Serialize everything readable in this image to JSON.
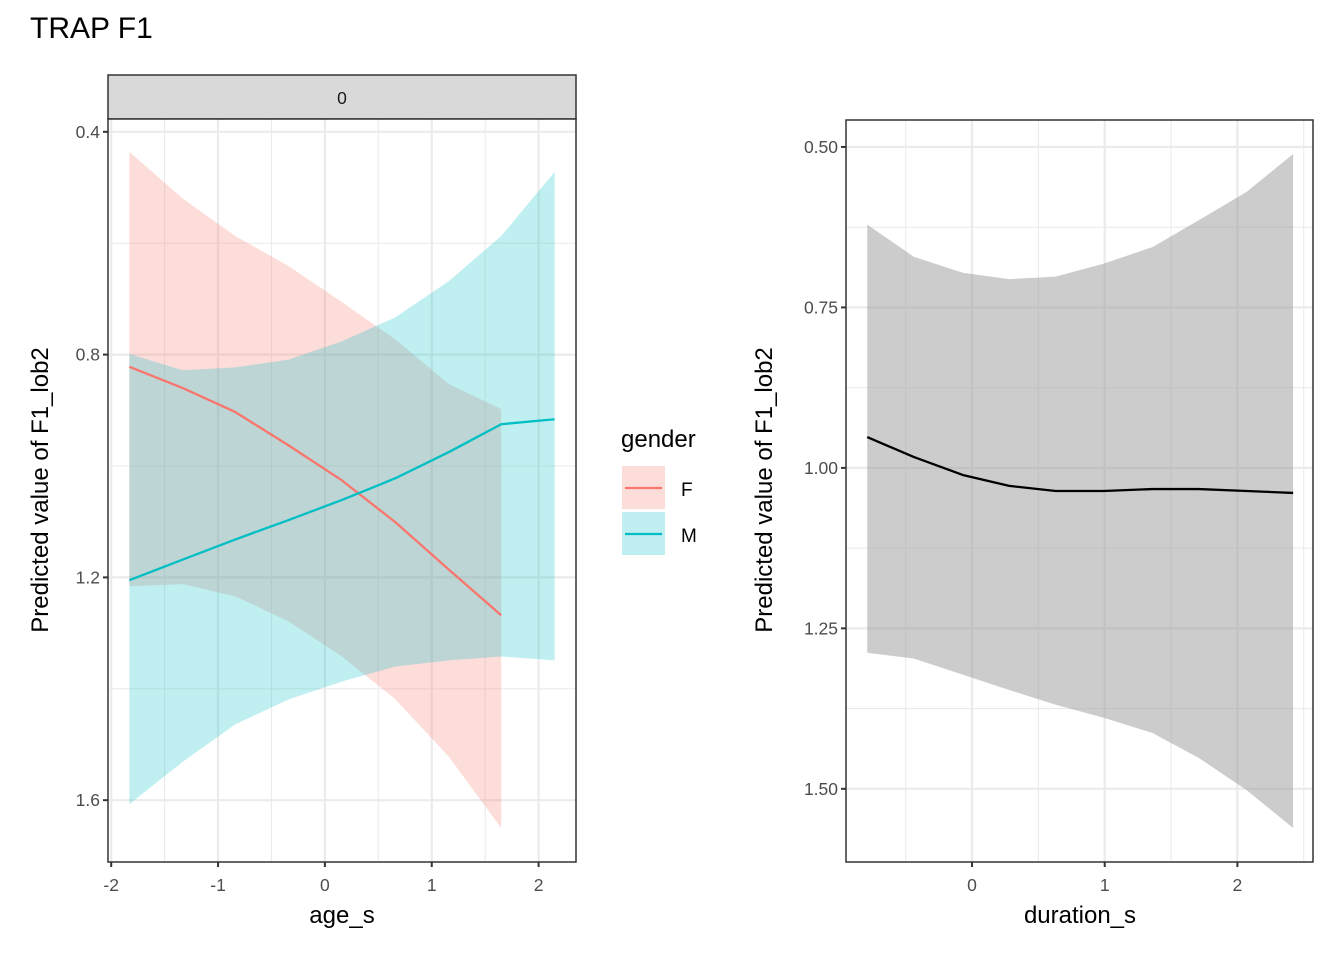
{
  "title": "TRAP F1",
  "colors": {
    "F": "#F8766D",
    "M": "#00BFC4",
    "ribbon_alpha": 0.25,
    "neutral_band": "#999999",
    "neutral_alpha": 0.5,
    "line_black": "#000000",
    "strip_fill": "#D9D9D9",
    "grid": "#EBEBEB",
    "border": "#333333"
  },
  "chart_data": [
    {
      "type": "line",
      "panel": "left",
      "facet_strip": "0",
      "xlabel": "age_s",
      "ylabel": "Predicted value of F1_lob2",
      "y_reversed": true,
      "xlim": [
        -2.03,
        2.35
      ],
      "ylim": [
        0.377,
        1.711
      ],
      "x_ticks": [
        -2,
        -1,
        0,
        1,
        2
      ],
      "x_tick_labels": [
        "-2",
        "-1",
        "0",
        "1",
        "2"
      ],
      "y_ticks": [
        0.4,
        0.8,
        1.2,
        1.6
      ],
      "y_tick_labels": [
        "0.4",
        "0.8",
        "1.2",
        "1.6"
      ],
      "grid": true,
      "legend": {
        "title": "gender",
        "position": "right",
        "entries": [
          "F",
          "M"
        ]
      },
      "series": [
        {
          "name": "F",
          "x": [
            -1.83,
            -1.33,
            -0.84,
            -0.34,
            0.16,
            0.66,
            1.16,
            1.65
          ],
          "y": [
            0.822,
            0.86,
            0.903,
            0.963,
            1.026,
            1.101,
            1.186,
            1.268
          ],
          "lower": [
            0.436,
            0.52,
            0.587,
            0.641,
            0.706,
            0.773,
            0.853,
            0.898
          ],
          "upper": [
            1.216,
            1.212,
            1.234,
            1.279,
            1.342,
            1.419,
            1.522,
            1.65
          ]
        },
        {
          "name": "M",
          "x": [
            -1.83,
            -1.33,
            -0.84,
            -0.34,
            0.16,
            0.66,
            1.16,
            1.65,
            2.15
          ],
          "y": [
            1.205,
            1.168,
            1.132,
            1.097,
            1.061,
            1.022,
            0.975,
            0.925,
            0.916
          ],
          "lower": [
            0.799,
            0.828,
            0.823,
            0.809,
            0.776,
            0.733,
            0.668,
            0.587,
            0.472
          ],
          "upper": [
            1.607,
            1.531,
            1.464,
            1.419,
            1.387,
            1.36,
            1.349,
            1.342,
            1.349
          ]
        }
      ]
    },
    {
      "type": "line",
      "panel": "right",
      "xlabel": "duration_s",
      "ylabel": "Predicted value of F1_lob2",
      "y_reversed": true,
      "xlim": [
        -0.95,
        2.57
      ],
      "ylim": [
        0.458,
        1.614
      ],
      "x_ticks": [
        0,
        1,
        2
      ],
      "x_tick_labels": [
        "0",
        "1",
        "2"
      ],
      "y_ticks": [
        0.5,
        0.75,
        1.0,
        1.25,
        1.5
      ],
      "y_tick_labels": [
        "0.50",
        "0.75",
        "1.00",
        "1.25",
        "1.50"
      ],
      "grid": true,
      "series": [
        {
          "name": "duration_s",
          "x": [
            -0.79,
            -0.44,
            -0.07,
            0.28,
            0.63,
            0.99,
            1.36,
            1.71,
            2.07,
            2.42
          ],
          "y": [
            0.952,
            0.983,
            1.011,
            1.028,
            1.036,
            1.036,
            1.033,
            1.033,
            1.036,
            1.039
          ],
          "lower": [
            0.621,
            0.671,
            0.696,
            0.706,
            0.702,
            0.682,
            0.656,
            0.614,
            0.57,
            0.511
          ],
          "upper": [
            1.288,
            1.297,
            1.322,
            1.346,
            1.369,
            1.389,
            1.413,
            1.452,
            1.502,
            1.561
          ]
        }
      ]
    }
  ]
}
